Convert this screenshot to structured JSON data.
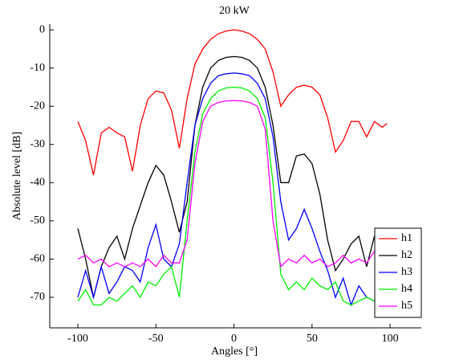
{
  "chart_data": {
    "type": "line",
    "title": "20 kW",
    "x_label": "Angles [°]",
    "y_label": "Absolute level [dB]",
    "x": [
      -100,
      -95,
      -90,
      -85,
      -80,
      -75,
      -70,
      -65,
      -60,
      -55,
      -50,
      -45,
      -40,
      -35,
      -30,
      -25,
      -20,
      -15,
      -10,
      -5,
      0,
      5,
      10,
      15,
      20,
      25,
      30,
      35,
      40,
      45,
      50,
      55,
      60,
      65,
      70,
      75,
      80,
      85,
      90,
      95,
      98
    ],
    "series": [
      {
        "name": "h1",
        "color": "#ff0000",
        "values": [
          -24,
          -29,
          -38,
          -27,
          -25.5,
          -27,
          -28,
          -37,
          -25,
          -18,
          -16,
          -16.5,
          -21,
          -31,
          -18,
          -9,
          -5,
          -2.5,
          -1,
          -0.3,
          0,
          -0.3,
          -1,
          -2.5,
          -5,
          -11,
          -20,
          -17,
          -15,
          -14.5,
          -15,
          -17,
          -23,
          -32,
          -29,
          -24,
          -24,
          -28,
          -24,
          -25.5,
          -24.5
        ]
      },
      {
        "name": "h2",
        "color": "#000000",
        "values": [
          -52,
          -60,
          -70,
          -62,
          -57,
          -54,
          -60,
          -52,
          -46,
          -40,
          -35.5,
          -38,
          -45,
          -53,
          -45,
          -25,
          -15,
          -10,
          -8,
          -7.2,
          -7,
          -7.2,
          -8,
          -10,
          -15,
          -25,
          -40,
          -40,
          -33,
          -32.5,
          -35,
          -43,
          -55,
          -63,
          -60,
          -56,
          -54,
          -62,
          -54,
          -64,
          -54
        ]
      },
      {
        "name": "h3",
        "color": "#0000ff",
        "values": [
          -70,
          -63,
          -70,
          -62,
          -69,
          -66,
          -62,
          -63,
          -66,
          -57,
          -51,
          -60,
          -62,
          -56,
          -40,
          -25,
          -18,
          -14,
          -12,
          -11.5,
          -11.3,
          -11.5,
          -12,
          -14,
          -18,
          -28,
          -45,
          -55,
          -52,
          -47,
          -52,
          -58,
          -63,
          -70,
          -65,
          -72,
          -67,
          -70,
          -71,
          -69,
          -75
        ]
      },
      {
        "name": "h4",
        "color": "#00ee00",
        "values": [
          -71,
          -68,
          -72,
          -72,
          -70,
          -71,
          -69,
          -67,
          -70,
          -66,
          -67,
          -64,
          -62,
          -70,
          -50,
          -32,
          -22,
          -18,
          -16,
          -15.2,
          -15,
          -15.2,
          -16,
          -18,
          -23,
          -40,
          -64,
          -68,
          -66,
          -68,
          -65,
          -67,
          -68,
          -66,
          -71,
          -72,
          -71,
          -70,
          -71,
          -72,
          -71
        ]
      },
      {
        "name": "h5",
        "color": "#ff00ff",
        "values": [
          -60,
          -59,
          -61,
          -60,
          -62,
          -61,
          -62,
          -61,
          -62,
          -60,
          -62,
          -59,
          -61,
          -61,
          -55,
          -35,
          -24,
          -20,
          -19,
          -18.6,
          -18.5,
          -18.6,
          -19,
          -20,
          -26,
          -50,
          -62,
          -60,
          -61,
          -59,
          -61,
          -60,
          -62,
          -61,
          -59,
          -61,
          -60,
          -61,
          -58,
          -62,
          -63
        ]
      }
    ],
    "xlim": [
      -118,
      120
    ],
    "ylim": [
      -78,
      1.5
    ],
    "xticks": [
      -100,
      -50,
      0,
      50,
      100
    ],
    "yticks": [
      0,
      -10,
      -20,
      -30,
      -40,
      -50,
      -60,
      -70
    ],
    "legend": "lower right"
  }
}
